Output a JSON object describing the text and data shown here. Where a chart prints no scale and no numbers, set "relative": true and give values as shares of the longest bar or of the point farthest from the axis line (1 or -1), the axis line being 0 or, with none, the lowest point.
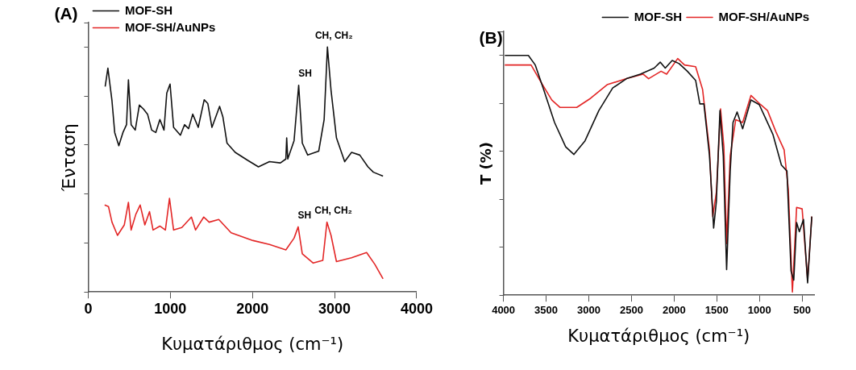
{
  "chart_data": [
    {
      "type": "line",
      "relative": true,
      "xlabel": "Κυματάριθμος (cm⁻¹)",
      "ylabel": "Ένταση",
      "xlim": [
        0,
        4000
      ],
      "xticks": [
        0,
        1000,
        2000,
        3000,
        4000
      ],
      "tick_labels": "x",
      "legend": "top left",
      "marker": "none",
      "annotations": [
        "(A)",
        {
          "text": "SH",
          "x": 2563,
          "y": 0.844
        },
        {
          "text": "CH, CH₂",
          "x": 2913,
          "y": 1
        },
        {
          "text": "SH",
          "x": 2557,
          "y": 0.266
        },
        {
          "text": "CH, CH₂",
          "x": 2907,
          "y": 0.285
        }
      ],
      "series": [
        {
          "name": "MOF-SH",
          "color": "#111111",
          "x": [
            207,
            240,
            290,
            323,
            373,
            423,
            467,
            490,
            523,
            573,
            623,
            673,
            723,
            773,
            823,
            873,
            923,
            957,
            997,
            1040,
            1123,
            1173,
            1223,
            1273,
            1340,
            1413,
            1457,
            1507,
            1600,
            1640,
            1690,
            1790,
            1940,
            2073,
            2207,
            2340,
            2407,
            2417,
            2430,
            2507,
            2563,
            2607,
            2673,
            2807,
            2873,
            2913,
            2957,
            3023,
            3123,
            3207,
            3307,
            3407,
            3473,
            3590
          ],
          "values": [
            0.839,
            0.914,
            0.78,
            0.651,
            0.597,
            0.651,
            0.683,
            0.866,
            0.683,
            0.661,
            0.763,
            0.747,
            0.726,
            0.661,
            0.651,
            0.704,
            0.661,
            0.812,
            0.849,
            0.672,
            0.64,
            0.683,
            0.667,
            0.726,
            0.672,
            0.785,
            0.769,
            0.672,
            0.758,
            0.715,
            0.608,
            0.57,
            0.538,
            0.511,
            0.532,
            0.527,
            0.543,
            0.629,
            0.543,
            0.618,
            0.844,
            0.608,
            0.559,
            0.575,
            0.704,
            1,
            0.823,
            0.629,
            0.532,
            0.57,
            0.559,
            0.511,
            0.489,
            0.473
          ]
        },
        {
          "name": "MOF-SH/AuNPs",
          "color": "#e32626",
          "x": [
            200,
            247,
            290,
            357,
            440,
            490,
            523,
            580,
            633,
            690,
            747,
            790,
            873,
            940,
            990,
            1040,
            1140,
            1257,
            1307,
            1407,
            1473,
            1590,
            1740,
            2007,
            2207,
            2407,
            2507,
            2557,
            2607,
            2740,
            2857,
            2907,
            2957,
            3023,
            3207,
            3390,
            3490,
            3590
          ],
          "values": [
            0.355,
            0.349,
            0.285,
            0.231,
            0.274,
            0.366,
            0.253,
            0.317,
            0.355,
            0.274,
            0.328,
            0.253,
            0.269,
            0.253,
            0.382,
            0.253,
            0.263,
            0.306,
            0.253,
            0.306,
            0.285,
            0.296,
            0.242,
            0.21,
            0.194,
            0.172,
            0.22,
            0.266,
            0.156,
            0.118,
            0.129,
            0.285,
            0.231,
            0.124,
            0.14,
            0.161,
            0.113,
            0.054
          ]
        }
      ]
    },
    {
      "type": "line",
      "relative": true,
      "xlabel": "Κυματάριθμος (cm⁻¹)",
      "ylabel": "T (%)",
      "xlim": [
        4000,
        360
      ],
      "xticks": [
        4000,
        3500,
        3000,
        2500,
        2000,
        1500,
        1000,
        500
      ],
      "tick_labels": "x",
      "legend": "top right",
      "marker": "none",
      "annotations": [
        "(B)"
      ],
      "series": [
        {
          "name": "MOF-SH",
          "color": "#111111",
          "x": [
            3984,
            3708,
            3627,
            3530,
            3401,
            3271,
            3174,
            3044,
            2882,
            2720,
            2558,
            2396,
            2234,
            2163,
            2104,
            2023,
            1942,
            1845,
            1748,
            1699,
            1651,
            1586,
            1537,
            1505,
            1463,
            1424,
            1385,
            1343,
            1310,
            1262,
            1197,
            1100,
            1003,
            938,
            841,
            743,
            678,
            630,
            598,
            565,
            533,
            484,
            436,
            387
          ],
          "values": [
            1,
            1,
            0.96,
            0.859,
            0.72,
            0.619,
            0.587,
            0.644,
            0.77,
            0.864,
            0.903,
            0.922,
            0.947,
            0.972,
            0.947,
            0.979,
            0.966,
            0.934,
            0.896,
            0.798,
            0.798,
            0.583,
            0.28,
            0.391,
            0.77,
            0.581,
            0.107,
            0.518,
            0.72,
            0.764,
            0.694,
            0.814,
            0.795,
            0.745,
            0.669,
            0.543,
            0.518,
            0.101,
            0.063,
            0.303,
            0.265,
            0.316,
            0.051,
            0.328
          ]
        },
        {
          "name": "MOF-SH/AuNPs",
          "color": "#e32626",
          "x": [
            3984,
            3676,
            3563,
            3433,
            3336,
            3141,
            2979,
            2785,
            2558,
            2364,
            2299,
            2153,
            2088,
            1958,
            1878,
            1748,
            1667,
            1586,
            1547,
            1505,
            1456,
            1417,
            1385,
            1343,
            1278,
            1197,
            1100,
            987,
            906,
            808,
            711,
            662,
            614,
            565,
            500,
            436,
            387
          ],
          "values": [
            0.96,
            0.96,
            0.89,
            0.814,
            0.783,
            0.783,
            0.821,
            0.878,
            0.903,
            0.922,
            0.903,
            0.934,
            0.922,
            0.987,
            0.96,
            0.953,
            0.859,
            0.606,
            0.328,
            0.429,
            0.777,
            0.619,
            0.215,
            0.581,
            0.732,
            0.72,
            0.833,
            0.795,
            0.77,
            0.682,
            0.606,
            0.442,
            0.013,
            0.366,
            0.36,
            0.063,
            0.328
          ]
        }
      ]
    }
  ]
}
